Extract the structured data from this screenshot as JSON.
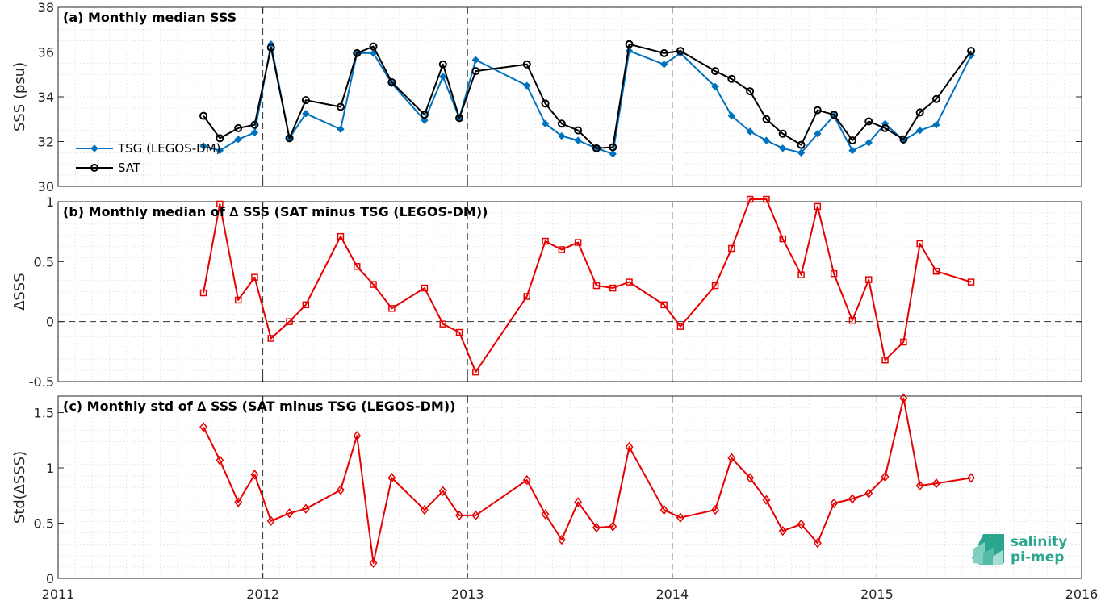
{
  "chart_data": [
    {
      "type": "line",
      "title": "(a) Monthly median SSS",
      "ylabel": "SSS (psu)",
      "ylim": [
        30,
        38
      ],
      "yticks": [
        "30",
        "32",
        "34",
        "36",
        "38"
      ],
      "xlim": [
        2011,
        2016
      ],
      "grid": true,
      "legend": "left",
      "series": [
        {
          "name": "TSG (LEGOS-DM)",
          "color": "#0072BD",
          "marker": "filled-diamond",
          "x": [
            2011.71,
            2011.79,
            2011.88,
            2011.96,
            2012.04,
            2012.13,
            2012.21,
            2012.38,
            2012.46,
            2012.54,
            2012.63,
            2012.79,
            2012.88,
            2012.96,
            2013.04,
            2013.29,
            2013.38,
            2013.46,
            2013.54,
            2013.63,
            2013.71,
            2013.79,
            2013.96,
            2014.04,
            2014.21,
            2014.29,
            2014.38,
            2014.46,
            2014.54,
            2014.63,
            2014.71,
            2014.79,
            2014.88,
            2014.96,
            2015.04,
            2015.13,
            2015.21,
            2015.29,
            2015.46
          ],
          "values": [
            31.8,
            31.6,
            32.1,
            32.4,
            36.35,
            32.15,
            33.25,
            32.55,
            35.95,
            35.95,
            34.6,
            32.95,
            34.9,
            33.05,
            35.65,
            34.5,
            32.8,
            32.25,
            32.05,
            31.7,
            31.45,
            36.05,
            35.45,
            35.95,
            34.45,
            33.15,
            32.45,
            32.05,
            31.7,
            31.5,
            32.35,
            33.15,
            31.6,
            31.95,
            32.8,
            32.05,
            32.5,
            32.75,
            35.85
          ]
        },
        {
          "name": "SAT",
          "color": "#000000",
          "marker": "open-circle",
          "x": [
            2011.71,
            2011.79,
            2011.88,
            2011.96,
            2012.04,
            2012.13,
            2012.21,
            2012.38,
            2012.46,
            2012.54,
            2012.63,
            2012.79,
            2012.88,
            2012.96,
            2013.04,
            2013.29,
            2013.38,
            2013.46,
            2013.54,
            2013.63,
            2013.71,
            2013.79,
            2013.96,
            2014.04,
            2014.21,
            2014.29,
            2014.38,
            2014.46,
            2014.54,
            2014.63,
            2014.71,
            2014.79,
            2014.88,
            2014.96,
            2015.04,
            2015.13,
            2015.21,
            2015.29,
            2015.46
          ],
          "values": [
            33.15,
            32.15,
            32.6,
            32.75,
            36.2,
            32.15,
            33.85,
            33.55,
            35.95,
            36.25,
            34.65,
            33.2,
            35.45,
            33.05,
            35.15,
            35.45,
            33.7,
            32.8,
            32.5,
            31.7,
            31.75,
            36.35,
            35.95,
            36.05,
            35.15,
            34.8,
            34.25,
            33,
            32.35,
            31.85,
            33.4,
            33.2,
            32.05,
            32.9,
            32.6,
            32.1,
            33.3,
            33.9,
            36.05
          ]
        }
      ]
    },
    {
      "type": "line",
      "title": "(b) Monthly median of ∆ SSS (SAT minus TSG (LEGOS-DM))",
      "ylabel": "∆SSS",
      "ylim": [
        -0.5,
        1
      ],
      "yticks": [
        "-0.5",
        "0",
        "0.5",
        "1"
      ],
      "xlim": [
        2011,
        2016
      ],
      "grid": true,
      "zero_line": "dashed",
      "series": [
        {
          "color": "#E60000",
          "marker": "open-square",
          "x": [
            2011.71,
            2011.79,
            2011.88,
            2011.96,
            2012.04,
            2012.13,
            2012.21,
            2012.38,
            2012.46,
            2012.54,
            2012.63,
            2012.79,
            2012.88,
            2012.96,
            2013.04,
            2013.29,
            2013.38,
            2013.46,
            2013.54,
            2013.63,
            2013.71,
            2013.79,
            2013.96,
            2014.04,
            2014.21,
            2014.29,
            2014.38,
            2014.46,
            2014.54,
            2014.63,
            2014.71,
            2014.79,
            2014.88,
            2014.96,
            2015.04,
            2015.13,
            2015.21,
            2015.29,
            2015.46
          ],
          "values": [
            0.24,
            0.98,
            0.18,
            0.37,
            -0.14,
            0,
            0.14,
            0.71,
            0.46,
            0.31,
            0.11,
            0.28,
            -0.02,
            -0.09,
            -0.42,
            0.21,
            0.67,
            0.6,
            0.66,
            0.3,
            0.28,
            0.33,
            0.14,
            -0.04,
            0.3,
            0.61,
            1.02,
            1.02,
            0.69,
            0.39,
            0.96,
            0.4,
            0.01,
            0.35,
            -0.32,
            -0.17,
            0.65,
            0.42,
            0.33
          ]
        }
      ]
    },
    {
      "type": "line",
      "title": "(c) Monthly std of ∆ SSS (SAT minus TSG (LEGOS-DM))",
      "ylabel": "Std(∆SSS)",
      "ylim": [
        0,
        1.65
      ],
      "yticks": [
        "0",
        "0.5",
        "1",
        "1.5"
      ],
      "xlim": [
        2011,
        2016
      ],
      "xticks": [
        "2011",
        "2012",
        "2013",
        "2014",
        "2015",
        "2016"
      ],
      "grid": true,
      "series": [
        {
          "color": "#E60000",
          "marker": "open-diamond",
          "x": [
            2011.71,
            2011.79,
            2011.88,
            2011.96,
            2012.04,
            2012.13,
            2012.21,
            2012.38,
            2012.46,
            2012.54,
            2012.63,
            2012.79,
            2012.88,
            2012.96,
            2013.04,
            2013.29,
            2013.38,
            2013.46,
            2013.54,
            2013.63,
            2013.71,
            2013.79,
            2013.96,
            2014.04,
            2014.21,
            2014.29,
            2014.38,
            2014.46,
            2014.54,
            2014.63,
            2014.71,
            2014.79,
            2014.88,
            2014.96,
            2015.04,
            2015.13,
            2015.21,
            2015.29,
            2015.46
          ],
          "values": [
            1.37,
            1.07,
            0.69,
            0.94,
            0.52,
            0.59,
            0.63,
            0.8,
            1.29,
            0.14,
            0.91,
            0.62,
            0.79,
            0.57,
            0.57,
            0.89,
            0.58,
            0.35,
            0.69,
            0.46,
            0.47,
            1.19,
            0.62,
            0.55,
            0.62,
            1.09,
            0.91,
            0.71,
            0.43,
            0.49,
            0.32,
            0.68,
            0.72,
            0.77,
            0.92,
            1.63,
            0.84,
            0.86,
            0.91
          ]
        }
      ]
    }
  ],
  "logo": {
    "line1": "salinity",
    "line2": "pi-mep",
    "color": "#2aa68f"
  }
}
